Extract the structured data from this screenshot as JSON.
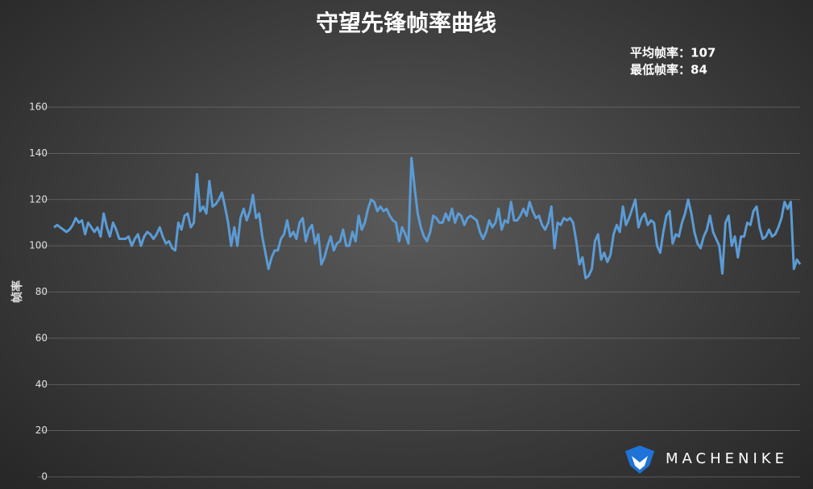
{
  "chart_data": {
    "type": "line",
    "title": "守望先锋帧率曲线",
    "annotations": [
      "平均帧率：107",
      "最低帧率：84"
    ],
    "y_label": "帧率",
    "logo": "MACHENIKE",
    "color": "#5b9bd5",
    "grid": true,
    "ylim": [
      0,
      160
    ],
    "yticks": [
      0,
      20,
      40,
      60,
      80,
      100,
      120,
      140,
      160
    ],
    "values": [
      108,
      109,
      108,
      107,
      106,
      107,
      109,
      112,
      110,
      111,
      105,
      110,
      108,
      106,
      108,
      104,
      114,
      108,
      104,
      110,
      107,
      103,
      103,
      103,
      104,
      100,
      103,
      105,
      100,
      104,
      106,
      105,
      103,
      105,
      108,
      104,
      101,
      102,
      99,
      98,
      110,
      107,
      113,
      114,
      108,
      110,
      131,
      115,
      117,
      114,
      128,
      117,
      118,
      120,
      123,
      117,
      110,
      100,
      108,
      100,
      112,
      116,
      111,
      115,
      122,
      112,
      114,
      104,
      97,
      90,
      95,
      98,
      98,
      103,
      105,
      111,
      104,
      106,
      103,
      110,
      112,
      102,
      107,
      109,
      101,
      105,
      92,
      95,
      100,
      104,
      98,
      101,
      102,
      107,
      100,
      100,
      106,
      102,
      113,
      107,
      110,
      116,
      120,
      119,
      115,
      117,
      115,
      116,
      113,
      111,
      110,
      102,
      108,
      105,
      101,
      138,
      125,
      114,
      108,
      104,
      102,
      106,
      113,
      112,
      110,
      110,
      114,
      111,
      116,
      110,
      114,
      113,
      109,
      112,
      113,
      112,
      111,
      106,
      103,
      106,
      111,
      108,
      110,
      116,
      107,
      111,
      110,
      119,
      111,
      111,
      113,
      116,
      113,
      119,
      115,
      112,
      113,
      109,
      107,
      110,
      117,
      99,
      110,
      109,
      112,
      111,
      112,
      110,
      102,
      92,
      95,
      86,
      87,
      90,
      102,
      105,
      94,
      97,
      93,
      96,
      105,
      109,
      106,
      117,
      109,
      112,
      116,
      120,
      108,
      112,
      114,
      109,
      111,
      110,
      100,
      97,
      106,
      113,
      115,
      101,
      105,
      104,
      110,
      114,
      120,
      114,
      106,
      101,
      99,
      104,
      107,
      113,
      106,
      103,
      100,
      88,
      110,
      113,
      100,
      104,
      95,
      104,
      104,
      110,
      109,
      115,
      117,
      108,
      103,
      104,
      107,
      104,
      105,
      108,
      112,
      119,
      116,
      119,
      90,
      94,
      92
    ]
  }
}
